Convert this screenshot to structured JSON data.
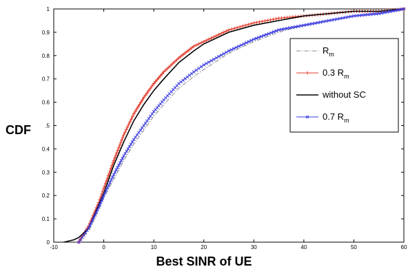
{
  "chart_data": {
    "type": "line",
    "title": "",
    "xlabel": "Best SINR of UE",
    "ylabel": "CDF",
    "xlim": [
      -10,
      60
    ],
    "ylim": [
      0,
      1
    ],
    "xticks": [
      -10,
      0,
      10,
      20,
      30,
      40,
      50,
      60
    ],
    "yticks": [
      0,
      0.1,
      0.2,
      0.3,
      0.4,
      0.5,
      0.6,
      0.7,
      0.8,
      0.9,
      1
    ],
    "ytick_labels": [
      "0",
      "0.1",
      "0.2",
      "0.3",
      "0.4",
      ".5",
      "0.6",
      "0.7",
      "0.8",
      "0.9",
      "1"
    ],
    "grid": false,
    "legend": {
      "placement": "right",
      "entries": [
        {
          "base": "R",
          "sub": "m"
        },
        {
          "base": "0.3 R",
          "sub": "m"
        },
        {
          "base": "without SC",
          "sub": ""
        },
        {
          "base": "0.7 R",
          "sub": "m"
        }
      ]
    },
    "series": [
      {
        "name": "R_m",
        "color": "#888888",
        "style": "dash-dot",
        "x": [
          -5,
          -3,
          -1,
          0,
          2,
          4,
          6,
          8,
          10,
          12,
          15,
          18,
          20,
          25,
          30,
          35,
          40,
          45,
          50,
          55,
          60
        ],
        "y": [
          0,
          0.05,
          0.14,
          0.19,
          0.27,
          0.35,
          0.42,
          0.48,
          0.54,
          0.59,
          0.66,
          0.71,
          0.74,
          0.81,
          0.86,
          0.9,
          0.93,
          0.95,
          0.97,
          0.98,
          1.0
        ]
      },
      {
        "name": "0.3 R_m",
        "color": "#e23a2a",
        "style": "solid-plus",
        "x": [
          -5,
          -3,
          -1,
          0,
          2,
          4,
          6,
          8,
          10,
          12,
          15,
          18,
          20,
          25,
          30,
          35,
          40,
          45,
          50,
          55,
          60
        ],
        "y": [
          0,
          0.07,
          0.17,
          0.23,
          0.35,
          0.46,
          0.55,
          0.62,
          0.68,
          0.73,
          0.79,
          0.84,
          0.86,
          0.91,
          0.94,
          0.96,
          0.97,
          0.98,
          0.99,
          0.99,
          1.0
        ]
      },
      {
        "name": "without SC",
        "color": "#000000",
        "style": "solid",
        "x": [
          -8,
          -6,
          -5,
          -3,
          -1,
          0,
          2,
          4,
          6,
          8,
          10,
          12,
          15,
          18,
          20,
          25,
          30,
          35,
          40,
          45,
          50,
          55,
          60
        ],
        "y": [
          0,
          0.01,
          0.02,
          0.06,
          0.16,
          0.21,
          0.33,
          0.43,
          0.52,
          0.59,
          0.65,
          0.7,
          0.77,
          0.82,
          0.85,
          0.9,
          0.93,
          0.95,
          0.97,
          0.98,
          0.99,
          0.99,
          1.0
        ]
      },
      {
        "name": "0.7 R_m",
        "color": "#3a3ae0",
        "style": "solid-x",
        "x": [
          -5,
          -3,
          -1,
          0,
          2,
          4,
          6,
          8,
          10,
          12,
          15,
          18,
          20,
          25,
          30,
          35,
          40,
          45,
          50,
          55,
          60
        ],
        "y": [
          0,
          0.06,
          0.15,
          0.2,
          0.29,
          0.37,
          0.44,
          0.5,
          0.56,
          0.61,
          0.68,
          0.73,
          0.76,
          0.82,
          0.87,
          0.91,
          0.93,
          0.95,
          0.97,
          0.98,
          1.0
        ]
      }
    ]
  }
}
